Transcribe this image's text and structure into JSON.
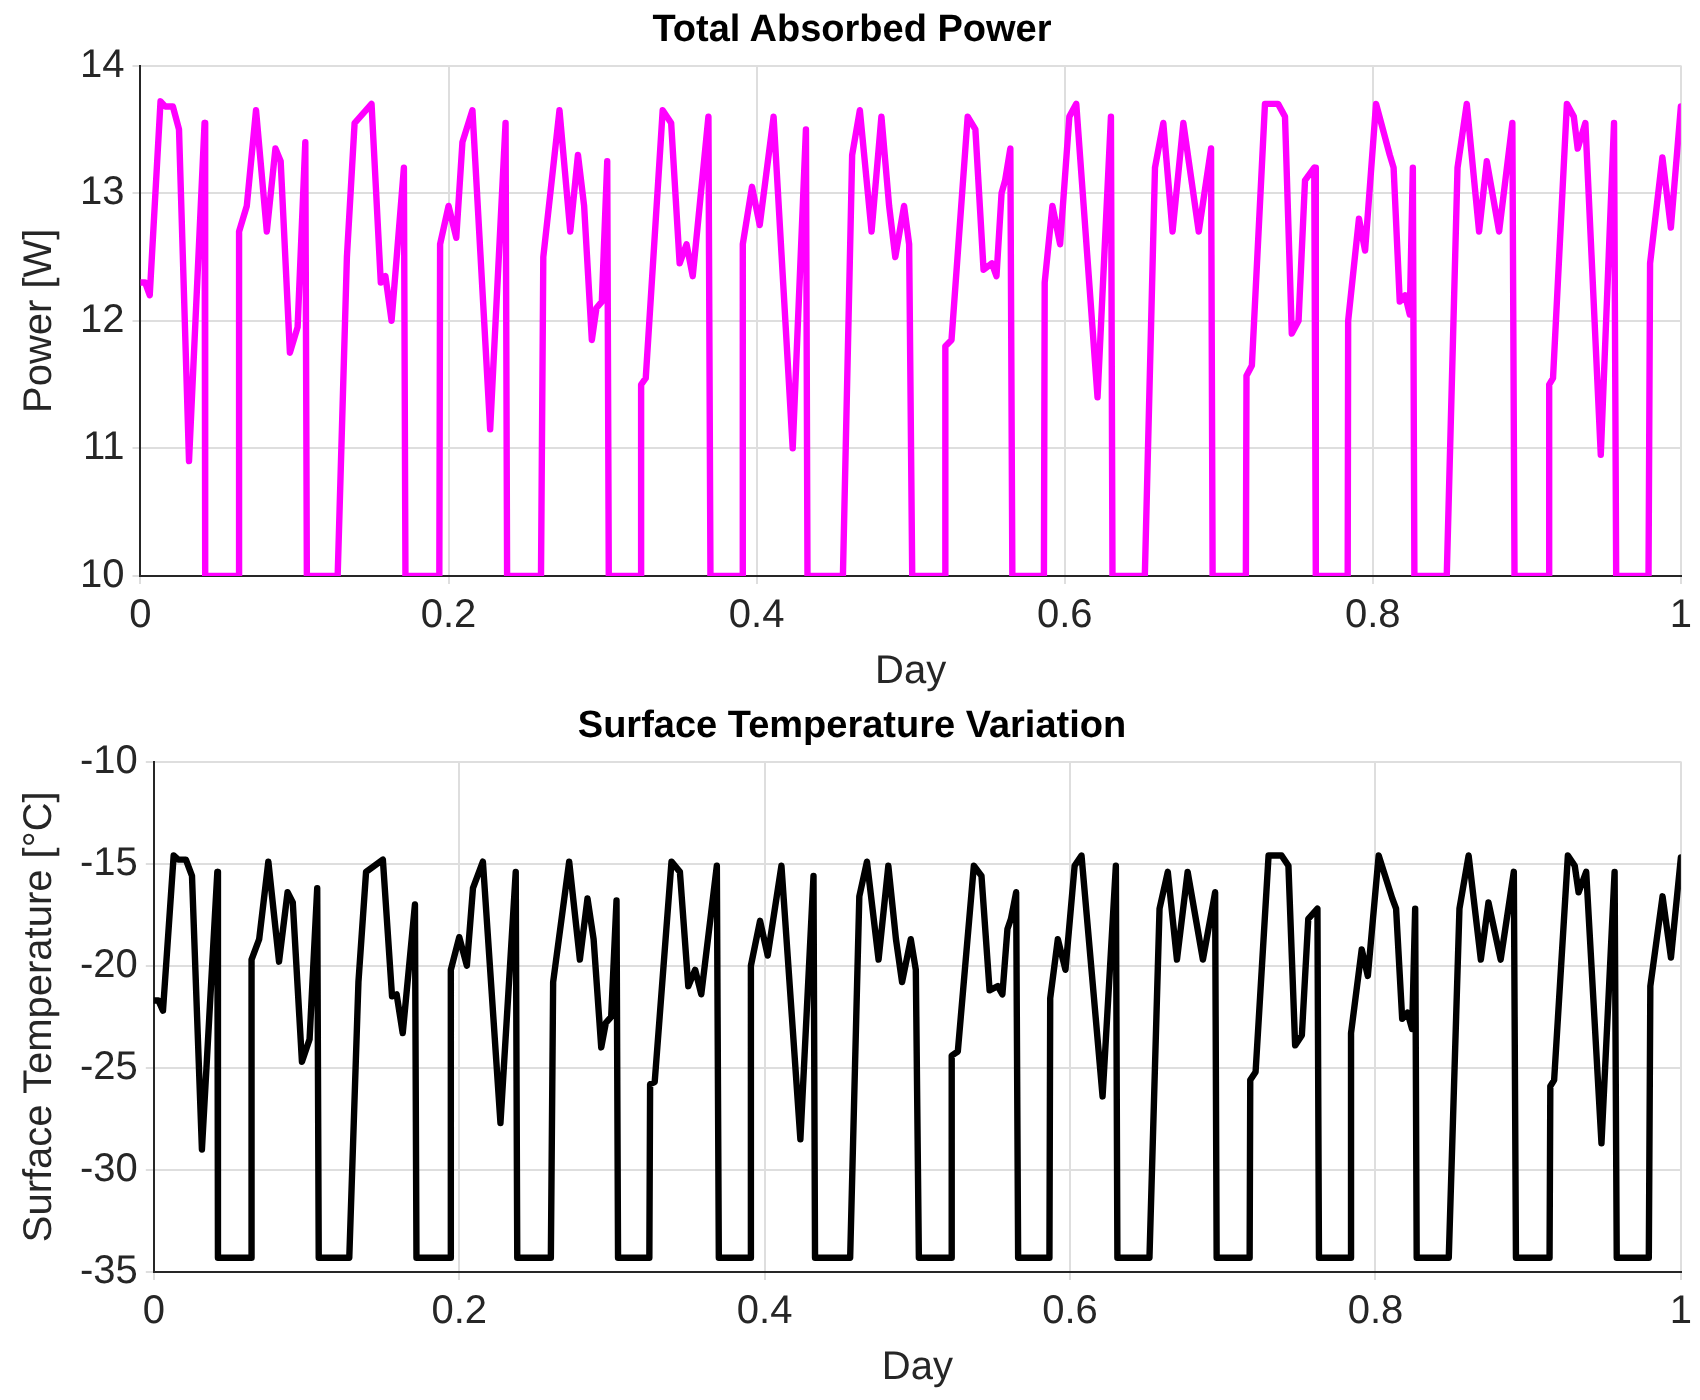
{
  "chart_data": [
    {
      "type": "line",
      "title": "Total Absorbed Power",
      "xlabel": "Day",
      "ylabel": "Power [W]",
      "x": [
        0,
        0.003,
        0.006,
        0.013,
        0.016,
        0.021,
        0.025,
        0.0315,
        0.0416,
        0.042,
        0.0635,
        0.064,
        0.069,
        0.075,
        0.082,
        0.0876,
        0.091,
        0.097,
        0.102,
        0.107,
        0.108,
        0.128,
        0.134,
        0.139,
        0.15,
        0.156,
        0.159,
        0.163,
        0.171,
        0.172,
        0.194,
        0.1945,
        0.2,
        0.205,
        0.209,
        0.2155,
        0.227,
        0.237,
        0.238,
        0.26,
        0.2615,
        0.272,
        0.279,
        0.284,
        0.288,
        0.293,
        0.296,
        0.2995,
        0.303,
        0.304,
        0.3245,
        0.325,
        0.328,
        0.339,
        0.3445,
        0.35,
        0.3545,
        0.3585,
        0.3687,
        0.37,
        0.3905,
        0.391,
        0.397,
        0.402,
        0.411,
        0.4234,
        0.432,
        0.433,
        0.456,
        0.462,
        0.467,
        0.4746,
        0.481,
        0.486,
        0.49,
        0.4957,
        0.499,
        0.501,
        0.522,
        0.5225,
        0.5265,
        0.537,
        0.542,
        0.5473,
        0.5527,
        0.5557,
        0.559,
        0.5613,
        0.5647,
        0.566,
        0.5865,
        0.587,
        0.592,
        0.597,
        0.603,
        0.6075,
        0.6213,
        0.63,
        0.631,
        0.652,
        0.6586,
        0.664,
        0.67,
        0.677,
        0.687,
        0.695,
        0.696,
        0.7176,
        0.718,
        0.7215,
        0.73,
        0.7385,
        0.743,
        0.7474,
        0.7518,
        0.756,
        0.762,
        0.763,
        0.7837,
        0.784,
        0.791,
        0.795,
        0.8021,
        0.811,
        0.8135,
        0.8175,
        0.821,
        0.824,
        0.826,
        0.827,
        0.848,
        0.855,
        0.861,
        0.869,
        0.874,
        0.882,
        0.8906,
        0.892,
        0.914,
        0.9145,
        0.917,
        0.926,
        0.9305,
        0.933,
        0.938,
        0.948,
        0.9566,
        0.958,
        0.979,
        0.98,
        0.988,
        0.9935,
        1.0
      ],
      "series": [
        {
          "color": "#ff00ff",
          "values": [
            12.3,
            12.3,
            12.2,
            13.72,
            13.68,
            13.68,
            13.5,
            10.9,
            13.55,
            10,
            10,
            12.7,
            12.9,
            13.65,
            12.7,
            13.35,
            13.25,
            11.75,
            11.95,
            13.4,
            10,
            10,
            12.5,
            13.55,
            13.7,
            12.3,
            12.35,
            12.0,
            13.2,
            10,
            10,
            12.6,
            12.9,
            12.65,
            13.4,
            13.65,
            11.15,
            13.55,
            10,
            10,
            12.5,
            13.65,
            12.7,
            13.3,
            12.9,
            11.85,
            12.1,
            12.15,
            13.25,
            10,
            10,
            11.5,
            11.55,
            13.65,
            13.55,
            12.45,
            12.6,
            12.35,
            13.6,
            10,
            10,
            12.6,
            13.05,
            12.75,
            13.6,
            11.0,
            13.5,
            10,
            10,
            13.3,
            13.65,
            12.7,
            13.6,
            12.9,
            12.5,
            12.9,
            12.6,
            10,
            10,
            11.8,
            11.85,
            13.6,
            13.5,
            12.4,
            12.45,
            12.35,
            13.0,
            13.1,
            13.35,
            10,
            10,
            12.3,
            12.9,
            12.6,
            13.6,
            13.7,
            11.4,
            13.6,
            10,
            10,
            13.2,
            13.55,
            12.7,
            13.55,
            12.7,
            13.35,
            10,
            10,
            11.57,
            11.65,
            13.7,
            13.7,
            13.6,
            11.9,
            12.0,
            13.1,
            13.2,
            10,
            10,
            12.0,
            12.8,
            12.55,
            13.7,
            13.3,
            13.2,
            12.15,
            12.2,
            12.05,
            13.2,
            10,
            10,
            13.2,
            13.7,
            12.7,
            13.25,
            12.7,
            13.55,
            10,
            10,
            11.5,
            11.55,
            13.7,
            13.6,
            13.35,
            13.55,
            10.95,
            13.55,
            10,
            10,
            12.45,
            13.28,
            12.73,
            13.68
          ]
        }
      ],
      "xlim": [
        0,
        1
      ],
      "xticks": [
        0,
        0.2,
        0.4,
        0.6,
        0.8,
        1
      ],
      "ylim": [
        10,
        14
      ],
      "yticks": [
        10,
        11,
        12,
        13,
        14
      ],
      "grid": true,
      "legend": false,
      "marker": "none",
      "line_style": "solid"
    },
    {
      "type": "line",
      "title": "Surface Temperature Variation",
      "xlabel": "Day",
      "ylabel": "Surface Temperature [°C]",
      "x": [
        0,
        0.003,
        0.006,
        0.013,
        0.016,
        0.021,
        0.025,
        0.0315,
        0.0416,
        0.042,
        0.0635,
        0.064,
        0.069,
        0.075,
        0.082,
        0.0876,
        0.091,
        0.097,
        0.102,
        0.107,
        0.108,
        0.128,
        0.134,
        0.139,
        0.15,
        0.156,
        0.159,
        0.163,
        0.171,
        0.172,
        0.194,
        0.1945,
        0.2,
        0.205,
        0.209,
        0.2155,
        0.227,
        0.237,
        0.238,
        0.26,
        0.2615,
        0.272,
        0.279,
        0.284,
        0.288,
        0.293,
        0.296,
        0.2995,
        0.303,
        0.304,
        0.3245,
        0.325,
        0.328,
        0.339,
        0.3445,
        0.35,
        0.3545,
        0.3585,
        0.3687,
        0.37,
        0.3905,
        0.391,
        0.397,
        0.402,
        0.411,
        0.4234,
        0.432,
        0.433,
        0.456,
        0.462,
        0.467,
        0.4746,
        0.481,
        0.486,
        0.49,
        0.4957,
        0.499,
        0.501,
        0.522,
        0.5225,
        0.5265,
        0.537,
        0.542,
        0.5473,
        0.5527,
        0.5557,
        0.559,
        0.5613,
        0.5647,
        0.566,
        0.5865,
        0.587,
        0.592,
        0.597,
        0.603,
        0.6075,
        0.6213,
        0.63,
        0.631,
        0.652,
        0.6586,
        0.664,
        0.67,
        0.677,
        0.687,
        0.695,
        0.696,
        0.7176,
        0.718,
        0.7215,
        0.73,
        0.7385,
        0.743,
        0.7474,
        0.7518,
        0.756,
        0.762,
        0.763,
        0.7837,
        0.784,
        0.791,
        0.795,
        0.8021,
        0.811,
        0.8135,
        0.8175,
        0.821,
        0.824,
        0.826,
        0.827,
        0.848,
        0.855,
        0.861,
        0.869,
        0.874,
        0.882,
        0.8906,
        0.892,
        0.914,
        0.9145,
        0.917,
        0.926,
        0.9305,
        0.933,
        0.938,
        0.948,
        0.9566,
        0.958,
        0.979,
        0.98,
        0.988,
        0.9935,
        1.0
      ],
      "series": [
        {
          "color": "#000000",
          "values": [
            -21.7,
            -21.7,
            -22.2,
            -14.6,
            -14.8,
            -14.8,
            -15.6,
            -29.0,
            -15.4,
            -34.3,
            -34.3,
            -19.7,
            -18.7,
            -14.9,
            -19.8,
            -16.4,
            -16.9,
            -24.7,
            -23.6,
            -16.2,
            -34.3,
            -34.3,
            -20.8,
            -15.4,
            -14.8,
            -21.5,
            -21.4,
            -23.3,
            -17.0,
            -34.3,
            -34.3,
            -20.2,
            -18.6,
            -20.0,
            -16.2,
            -14.9,
            -27.7,
            -15.4,
            -34.3,
            -34.3,
            -20.8,
            -14.9,
            -19.7,
            -16.7,
            -18.7,
            -24.0,
            -22.8,
            -22.5,
            -16.8,
            -34.3,
            -34.3,
            -25.8,
            -25.7,
            -14.9,
            -15.4,
            -21.0,
            -20.2,
            -21.4,
            -15.1,
            -34.3,
            -34.3,
            -20.0,
            -17.8,
            -19.5,
            -15.1,
            -28.5,
            -15.6,
            -34.3,
            -34.3,
            -16.6,
            -14.9,
            -19.7,
            -15.1,
            -18.7,
            -20.8,
            -18.7,
            -20.2,
            -34.3,
            -34.3,
            -24.4,
            -24.2,
            -15.1,
            -15.6,
            -21.2,
            -21.0,
            -21.4,
            -18.2,
            -17.7,
            -16.4,
            -34.3,
            -34.3,
            -21.6,
            -18.7,
            -20.2,
            -15.1,
            -14.6,
            -26.4,
            -15.1,
            -34.3,
            -34.3,
            -17.2,
            -15.4,
            -19.7,
            -15.4,
            -19.7,
            -16.4,
            -34.3,
            -34.3,
            -25.6,
            -25.2,
            -14.6,
            -14.6,
            -15.1,
            -23.9,
            -23.4,
            -17.7,
            -17.2,
            -34.3,
            -34.3,
            -23.3,
            -19.2,
            -20.5,
            -14.6,
            -16.7,
            -17.2,
            -22.6,
            -22.3,
            -23.1,
            -17.2,
            -34.3,
            -34.3,
            -17.2,
            -14.6,
            -19.7,
            -16.9,
            -19.7,
            -15.4,
            -34.3,
            -34.3,
            -25.9,
            -25.6,
            -14.6,
            -15.1,
            -16.4,
            -15.4,
            -28.7,
            -15.4,
            -34.3,
            -34.3,
            -21.0,
            -16.6,
            -19.6,
            -14.7
          ]
        }
      ],
      "xlim": [
        0,
        1
      ],
      "xticks": [
        0,
        0.2,
        0.4,
        0.6,
        0.8,
        1
      ],
      "ylim": [
        -35,
        -10
      ],
      "yticks": [
        -35,
        -30,
        -25,
        -20,
        -15,
        -10
      ],
      "grid": true,
      "legend": false,
      "marker": "none",
      "line_style": "solid"
    }
  ]
}
